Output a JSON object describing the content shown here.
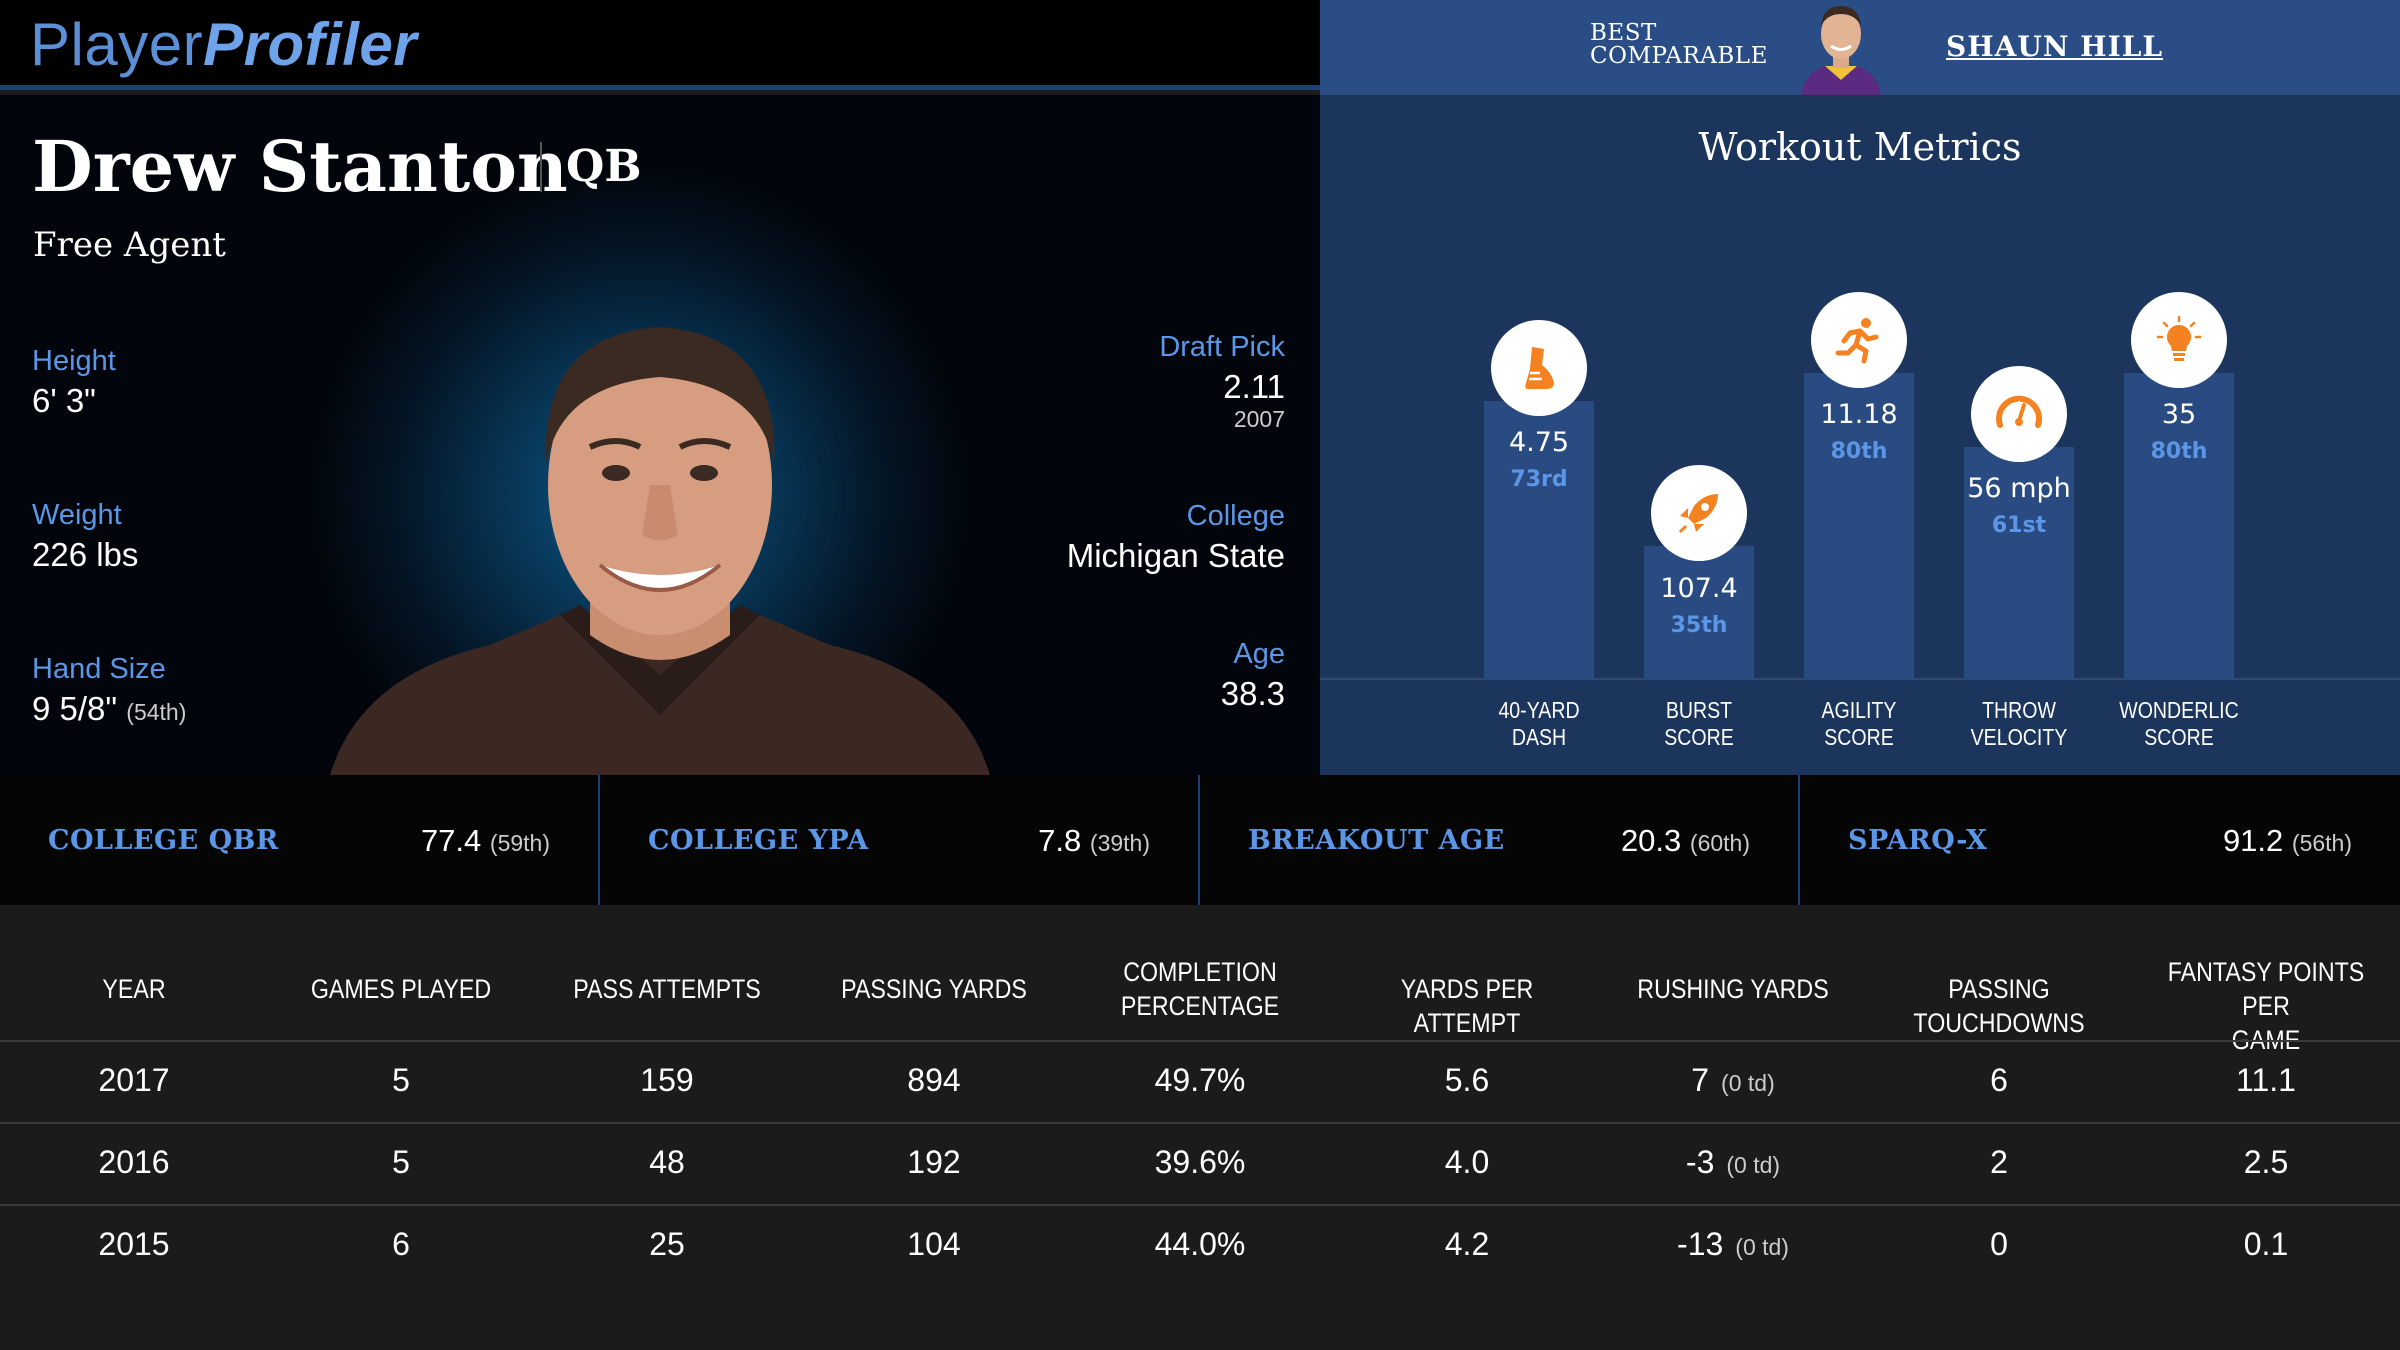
{
  "brand": {
    "part1": "Player",
    "part2": "Profiler"
  },
  "comparable": {
    "label_line1": "BEST",
    "label_line2": "COMPARABLE",
    "name": "SHAUN HILL"
  },
  "player": {
    "name": "Drew Stanton",
    "position": "QB",
    "team": "Free Agent",
    "height_label": "Height",
    "height": "6' 3\"",
    "weight_label": "Weight",
    "weight": "226 lbs",
    "hand_label": "Hand Size",
    "hand": "9 5/8\"",
    "hand_pct": "(54th)",
    "draft_label": "Draft Pick",
    "draft": "2.11",
    "draft_year": "2007",
    "college_label": "College",
    "college": "Michigan State",
    "age_label": "Age",
    "age": "38.3"
  },
  "workout": {
    "title": "Workout Metrics",
    "metrics": [
      {
        "label1": "40-YARD",
        "label2": "DASH",
        "value": "4.75",
        "pct": "73rd",
        "icon": "shoe-icon",
        "percentile": 73
      },
      {
        "label1": "BURST",
        "label2": "SCORE",
        "value": "107.4",
        "pct": "35th",
        "icon": "rocket-icon",
        "percentile": 35
      },
      {
        "label1": "AGILITY",
        "label2": "SCORE",
        "value": "11.18",
        "pct": "80th",
        "icon": "runner-icon",
        "percentile": 80
      },
      {
        "label1": "THROW",
        "label2": "VELOCITY",
        "value": "56 mph",
        "pct": "61st",
        "icon": "speedometer-icon",
        "percentile": 61
      },
      {
        "label1": "WONDERLIC",
        "label2": "SCORE",
        "value": "35",
        "pct": "80th",
        "icon": "lightbulb-icon",
        "percentile": 80
      }
    ],
    "accent": "#f58220"
  },
  "advanced": [
    {
      "label": "COLLEGE QBR",
      "value": "77.4",
      "pct": "(59th)"
    },
    {
      "label": "COLLEGE YPA",
      "value": "7.8",
      "pct": "(39th)"
    },
    {
      "label": "BREAKOUT AGE",
      "value": "20.3",
      "pct": "(60th)"
    },
    {
      "label": "SPARQ-X",
      "value": "91.2",
      "pct": "(56th)"
    }
  ],
  "table": {
    "headers": [
      [
        "YEAR"
      ],
      [
        "GAMES PLAYED"
      ],
      [
        "PASS ATTEMPTS"
      ],
      [
        "PASSING YARDS"
      ],
      [
        "COMPLETION",
        "PERCENTAGE"
      ],
      [
        "YARDS PER ATTEMPT"
      ],
      [
        "RUSHING YARDS"
      ],
      [
        "PASSING TOUCHDOWNS"
      ],
      [
        "FANTASY POINTS PER",
        "GAME"
      ]
    ],
    "rows": [
      {
        "year": "2017",
        "games": "5",
        "att": "159",
        "yds": "894",
        "pct": "49.7%",
        "ypa": "5.6",
        "rush": "7",
        "rush_td": "(0 td)",
        "td": "6",
        "fpg": "11.1"
      },
      {
        "year": "2016",
        "games": "5",
        "att": "48",
        "yds": "192",
        "pct": "39.6%",
        "ypa": "4.0",
        "rush": "-3",
        "rush_td": "(0 td)",
        "td": "2",
        "fpg": "2.5"
      },
      {
        "year": "2015",
        "games": "6",
        "att": "25",
        "yds": "104",
        "pct": "44.0%",
        "ypa": "4.2",
        "rush": "-13",
        "rush_td": "(0 td)",
        "td": "0",
        "fpg": "0.1"
      }
    ]
  }
}
